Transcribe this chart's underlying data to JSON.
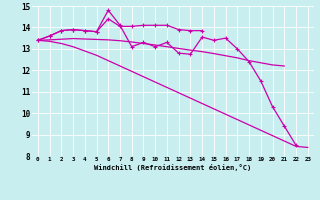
{
  "xlabel": "Windchill (Refroidissement éolien,°C)",
  "bg_color": "#c8eef0",
  "line_color": "#cc00aa",
  "xlim": [
    -0.5,
    23.5
  ],
  "ylim": [
    8,
    15
  ],
  "xticks": [
    0,
    1,
    2,
    3,
    4,
    5,
    6,
    7,
    8,
    9,
    10,
    11,
    12,
    13,
    14,
    15,
    16,
    17,
    18,
    19,
    20,
    21,
    22,
    23
  ],
  "yticks": [
    8,
    9,
    10,
    11,
    12,
    13,
    14,
    15
  ],
  "s1x": [
    0,
    1,
    2,
    3,
    4,
    5,
    6,
    7,
    8,
    9,
    10,
    11,
    12,
    13,
    14,
    15,
    16,
    17,
    18,
    19,
    20,
    21,
    22
  ],
  "s1y": [
    13.4,
    13.6,
    13.85,
    13.9,
    13.85,
    13.8,
    14.8,
    14.1,
    13.1,
    13.3,
    13.1,
    13.3,
    12.8,
    12.75,
    13.55,
    13.4,
    13.5,
    13.0,
    12.4,
    11.5,
    10.3,
    9.4,
    8.5
  ],
  "s2x": [
    0,
    1,
    2,
    3,
    4,
    5,
    6,
    7,
    8,
    9,
    10,
    11,
    12,
    13,
    14
  ],
  "s2y": [
    13.4,
    13.6,
    13.85,
    13.9,
    13.85,
    13.8,
    14.4,
    14.05,
    14.05,
    14.1,
    14.1,
    14.1,
    13.9,
    13.85,
    13.85
  ],
  "s3x": [
    0,
    1,
    2,
    3,
    4,
    5,
    6,
    7,
    8,
    9,
    10,
    11,
    12,
    13,
    14,
    15,
    16,
    17,
    18,
    19,
    20,
    21
  ],
  "s3y": [
    13.4,
    13.42,
    13.45,
    13.48,
    13.46,
    13.44,
    13.42,
    13.38,
    13.32,
    13.25,
    13.18,
    13.1,
    13.02,
    12.94,
    12.87,
    12.78,
    12.68,
    12.58,
    12.45,
    12.35,
    12.25,
    12.2
  ],
  "s4x": [
    0,
    1,
    2,
    3,
    4,
    5,
    6,
    7,
    8,
    9,
    10,
    11,
    12,
    13,
    14,
    15,
    16,
    17,
    18,
    19,
    20,
    21,
    22,
    23
  ],
  "s4y": [
    13.4,
    13.35,
    13.25,
    13.1,
    12.9,
    12.7,
    12.45,
    12.2,
    11.95,
    11.7,
    11.45,
    11.2,
    10.95,
    10.7,
    10.45,
    10.2,
    9.95,
    9.7,
    9.45,
    9.2,
    8.95,
    8.7,
    8.45,
    8.4
  ]
}
